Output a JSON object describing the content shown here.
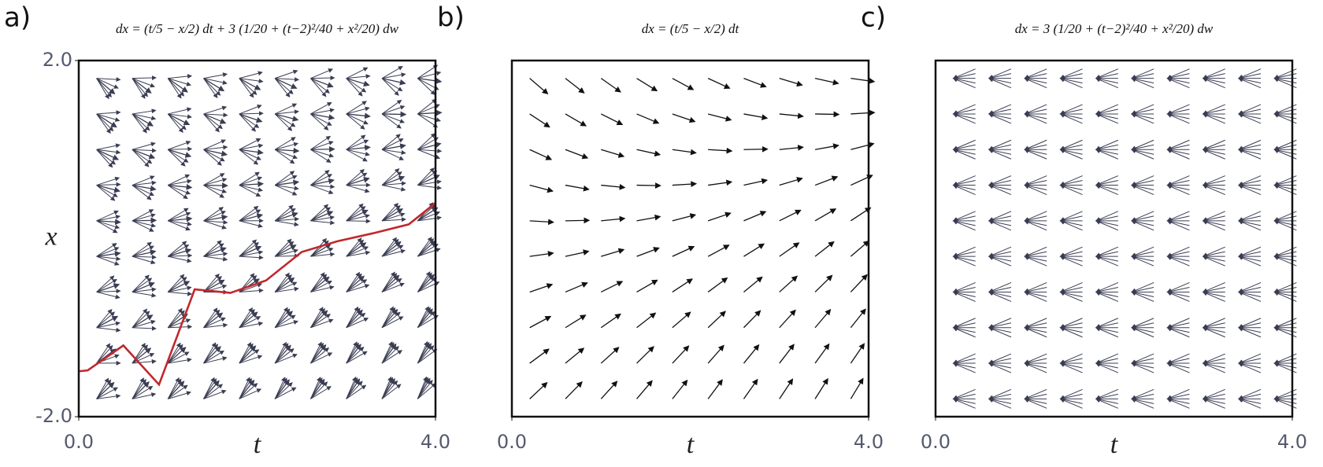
{
  "chart_data": [
    {
      "type": "quiver",
      "label": "a)",
      "title": "dx = (t/5 − x/2) dt + 3 (1/20 + (t−2)²/40 + x²/20) dw",
      "xlabel": "t",
      "ylabel": "x",
      "xlim": [
        0,
        4
      ],
      "ylim": [
        -2,
        2
      ],
      "xticks": [
        {
          "value": 0,
          "label": "0.0"
        },
        {
          "value": 4,
          "label": "4.0"
        }
      ],
      "yticks": [
        {
          "value": -2,
          "label": "-2.0"
        },
        {
          "value": 2,
          "label": "2.0"
        }
      ],
      "grid_t": [
        0.2,
        0.6,
        1.0,
        1.4,
        1.8,
        2.2,
        2.6,
        3.0,
        3.4,
        3.8
      ],
      "grid_x": [
        1.8,
        1.4,
        1.0,
        0.6,
        0.2,
        -0.2,
        -0.6,
        -1.0,
        -1.4,
        -1.8
      ],
      "arrow_color": "#3a3d52",
      "noise": true,
      "drift": [
        [
          -0.86,
          -0.78,
          -0.7,
          -0.62,
          -0.54,
          -0.46,
          -0.38,
          -0.3,
          -0.22,
          -0.14
        ],
        [
          -0.66,
          -0.58,
          -0.5,
          -0.42,
          -0.34,
          -0.26,
          -0.18,
          -0.1,
          -0.02,
          0.06
        ],
        [
          -0.46,
          -0.38,
          -0.3,
          -0.22,
          -0.14,
          -0.06,
          0.02,
          0.1,
          0.18,
          0.26
        ],
        [
          -0.26,
          -0.18,
          -0.1,
          -0.02,
          0.06,
          0.14,
          0.22,
          0.3,
          0.38,
          0.46
        ],
        [
          -0.06,
          0.02,
          0.1,
          0.18,
          0.26,
          0.34,
          0.42,
          0.5,
          0.58,
          0.66
        ],
        [
          0.14,
          0.22,
          0.3,
          0.38,
          0.46,
          0.54,
          0.62,
          0.7,
          0.78,
          0.86
        ],
        [
          0.34,
          0.42,
          0.5,
          0.58,
          0.66,
          0.74,
          0.82,
          0.9,
          0.98,
          1.06
        ],
        [
          0.54,
          0.62,
          0.7,
          0.78,
          0.86,
          0.94,
          1.02,
          1.1,
          1.18,
          1.26
        ],
        [
          0.74,
          0.82,
          0.9,
          0.98,
          1.06,
          1.14,
          1.22,
          1.3,
          1.38,
          1.46
        ],
        [
          0.94,
          1.02,
          1.1,
          1.18,
          1.26,
          1.34,
          1.42,
          1.5,
          1.58,
          1.66
        ]
      ],
      "series": [
        {
          "color": "#c0282d",
          "x": [
            0,
            0.1,
            0.5,
            0.9,
            1.3,
            1.7,
            2.1,
            2.5,
            2.9,
            3.3,
            3.7,
            4.0
          ],
          "values": [
            -1.49,
            -1.48,
            -1.2,
            -1.64,
            -0.57,
            -0.61,
            -0.47,
            -0.15,
            -0.03,
            0.06,
            0.16,
            0.4
          ]
        }
      ]
    },
    {
      "type": "quiver",
      "label": "b)",
      "title": "dx = (t/5 − x/2) dt",
      "xlabel": "t",
      "xlim": [
        0,
        4
      ],
      "ylim": [
        -2,
        2
      ],
      "xticks": [
        {
          "value": 0,
          "label": "0.0"
        },
        {
          "value": 4,
          "label": "4.0"
        }
      ],
      "grid_t": [
        0.2,
        0.6,
        1.0,
        1.4,
        1.8,
        2.2,
        2.6,
        3.0,
        3.4,
        3.8
      ],
      "grid_x": [
        1.8,
        1.4,
        1.0,
        0.6,
        0.2,
        -0.2,
        -0.6,
        -1.0,
        -1.4,
        -1.8
      ],
      "arrow_color": "#111111",
      "noise": false,
      "drift": [
        [
          -0.86,
          -0.78,
          -0.7,
          -0.62,
          -0.54,
          -0.46,
          -0.38,
          -0.3,
          -0.22,
          -0.14
        ],
        [
          -0.66,
          -0.58,
          -0.5,
          -0.42,
          -0.34,
          -0.26,
          -0.18,
          -0.1,
          -0.02,
          0.06
        ],
        [
          -0.46,
          -0.38,
          -0.3,
          -0.22,
          -0.14,
          -0.06,
          0.02,
          0.1,
          0.18,
          0.26
        ],
        [
          -0.26,
          -0.18,
          -0.1,
          -0.02,
          0.06,
          0.14,
          0.22,
          0.3,
          0.38,
          0.46
        ],
        [
          -0.06,
          0.02,
          0.1,
          0.18,
          0.26,
          0.34,
          0.42,
          0.5,
          0.58,
          0.66
        ],
        [
          0.14,
          0.22,
          0.3,
          0.38,
          0.46,
          0.54,
          0.62,
          0.7,
          0.78,
          0.86
        ],
        [
          0.34,
          0.42,
          0.5,
          0.58,
          0.66,
          0.74,
          0.82,
          0.9,
          0.98,
          1.06
        ],
        [
          0.54,
          0.62,
          0.7,
          0.78,
          0.86,
          0.94,
          1.02,
          1.1,
          1.18,
          1.26
        ],
        [
          0.74,
          0.82,
          0.9,
          0.98,
          1.06,
          1.14,
          1.22,
          1.3,
          1.38,
          1.46
        ],
        [
          0.94,
          1.02,
          1.1,
          1.18,
          1.26,
          1.34,
          1.42,
          1.5,
          1.58,
          1.66
        ]
      ]
    },
    {
      "type": "quiver",
      "label": "c)",
      "title": "dx = 3 (1/20 + (t−2)²/40 + x²/20) dw",
      "xlabel": "t",
      "xlim": [
        0,
        4
      ],
      "ylim": [
        -2,
        2
      ],
      "xticks": [
        {
          "value": 0,
          "label": "0.0"
        },
        {
          "value": 4,
          "label": "4.0"
        }
      ],
      "grid_t": [
        0.2,
        0.6,
        1.0,
        1.4,
        1.8,
        2.2,
        2.6,
        3.0,
        3.4,
        3.8
      ],
      "grid_x": [
        1.8,
        1.4,
        1.0,
        0.6,
        0.2,
        -0.2,
        -0.6,
        -1.0,
        -1.4,
        -1.8
      ],
      "arrow_color": "#3a3d52",
      "noise": true
    }
  ]
}
